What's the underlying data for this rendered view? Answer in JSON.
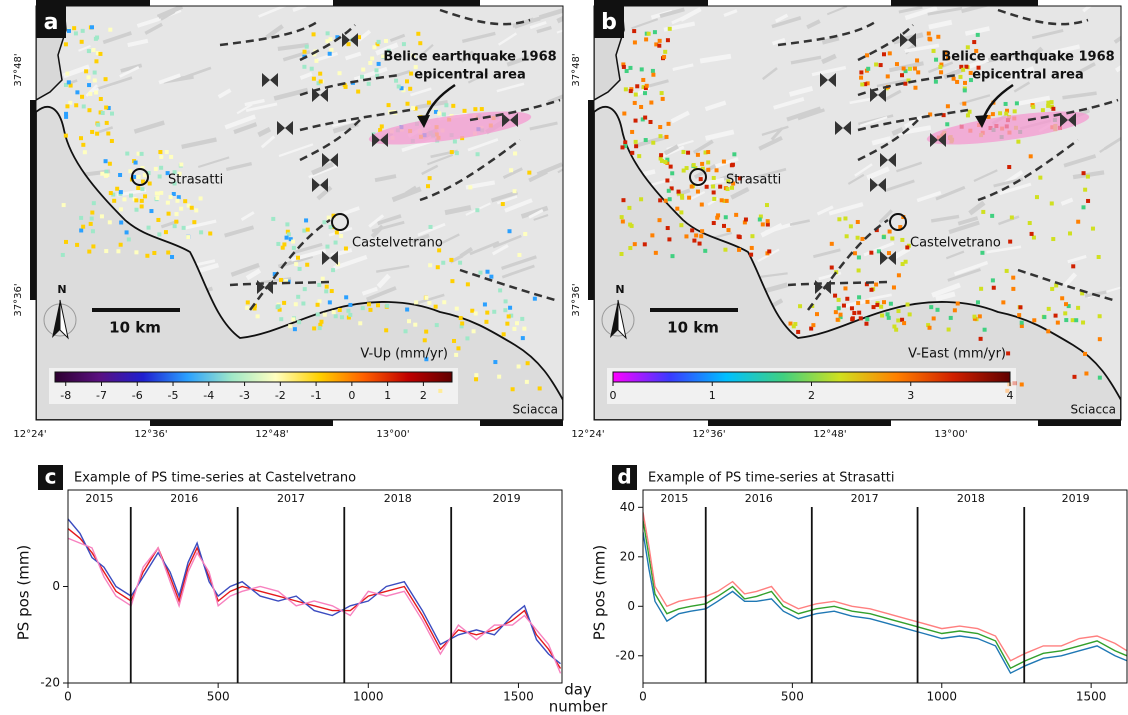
{
  "maps": [
    {
      "label": "a",
      "annotation": [
        "Belice earthquake 1968",
        "epicentral area"
      ],
      "towns": [
        "Strasatti",
        "Castelvetrano"
      ],
      "scale_bar": "10 km",
      "north": "N",
      "place": "Sciacca",
      "lat_labels": [
        "37°48'",
        "37°36'"
      ],
      "lon_labels": [
        "12°24'",
        "12°36'",
        "12°48'",
        "13°00'"
      ],
      "colorbar": {
        "label": "V-Up (mm/yr)",
        "lim": [
          -8.3,
          2.8
        ],
        "ticks": [
          -8,
          -7,
          -6,
          -5,
          -4,
          -3,
          -2,
          -1,
          0,
          1,
          2
        ],
        "colors": [
          "#2d0030",
          "#5a1080",
          "#1f1fd0",
          "#2aa0ff",
          "#9fe8c8",
          "#ffffc0",
          "#ffd000",
          "#ff6000",
          "#c00000",
          "#600000"
        ]
      }
    },
    {
      "label": "b",
      "annotation": [
        "Belice earthquake 1968",
        "epicentral area"
      ],
      "towns": [
        "Strasatti",
        "Castelvetrano"
      ],
      "scale_bar": "10 km",
      "north": "N",
      "place": "Sciacca",
      "lat_labels": [
        "37°48'",
        "37°36'"
      ],
      "lon_labels": [
        "12°24'",
        "12°36'",
        "12°48'",
        "13°00'"
      ],
      "colorbar": {
        "label": "V-East (mm/yr)",
        "lim": [
          0,
          4
        ],
        "ticks": [
          0,
          1,
          2,
          3,
          4
        ],
        "colors": [
          "#ff00ff",
          "#3a3aff",
          "#00c0ff",
          "#40d080",
          "#d0e020",
          "#ff8000",
          "#d02000",
          "#600000"
        ]
      }
    }
  ],
  "chart_data": [
    {
      "type": "line",
      "panel_label": "c",
      "title": "Example of PS time-series at Castelvetrano",
      "y_label": "PS pos (mm)",
      "x_label": [
        "day",
        "number"
      ],
      "x": [
        0,
        40,
        80,
        120,
        160,
        210,
        250,
        300,
        340,
        370,
        400,
        430,
        470,
        500,
        540,
        580,
        640,
        700,
        760,
        820,
        880,
        940,
        1000,
        1060,
        1120,
        1180,
        1240,
        1300,
        1360,
        1420,
        1480,
        1520,
        1560,
        1600,
        1640
      ],
      "series": [
        {
          "color": "#e41a1c",
          "values": [
            12,
            10,
            7,
            3,
            -1,
            -3,
            3,
            8,
            2,
            -3,
            4,
            8,
            2,
            -3,
            -1,
            0,
            -1,
            -2,
            -3,
            -4,
            -5,
            -5,
            -2,
            -1,
            0,
            -6,
            -13,
            -9,
            -10,
            -9,
            -7,
            -5,
            -10,
            -13,
            -17
          ]
        },
        {
          "color": "#3b4cc0",
          "values": [
            14,
            11,
            6,
            4,
            0,
            -2,
            2,
            7,
            3,
            -2,
            5,
            9,
            1,
            -2,
            0,
            1,
            -2,
            -3,
            -2,
            -5,
            -6,
            -4,
            -3,
            0,
            1,
            -5,
            -12,
            -10,
            -9,
            -10,
            -6,
            -4,
            -11,
            -14,
            -16
          ]
        },
        {
          "color": "#f781bf",
          "values": [
            10,
            9,
            8,
            2,
            -2,
            -4,
            4,
            8,
            1,
            -4,
            3,
            7,
            3,
            -4,
            -2,
            -1,
            0,
            -1,
            -4,
            -3,
            -4,
            -6,
            -1,
            -2,
            -1,
            -7,
            -14,
            -8,
            -11,
            -8,
            -8,
            -6,
            -9,
            -12,
            -18
          ]
        }
      ],
      "xlim": [
        0,
        1645
      ],
      "ylim": [
        -20,
        20
      ],
      "xticks": [
        0,
        500,
        1000,
        1500
      ],
      "yticks": [
        -20,
        0
      ],
      "years": [
        "2015",
        "2016",
        "2017",
        "2018",
        "2019"
      ],
      "year_boundaries": [
        209,
        565,
        920,
        1276
      ]
    },
    {
      "type": "line",
      "panel_label": "d",
      "title": "Example of PS time-series at Strasatti",
      "y_label": "PS pos (mm)",
      "x": [
        0,
        20,
        40,
        80,
        120,
        160,
        210,
        250,
        300,
        340,
        380,
        430,
        470,
        520,
        580,
        640,
        700,
        760,
        820,
        880,
        940,
        1000,
        1060,
        1120,
        1180,
        1230,
        1280,
        1340,
        1400,
        1460,
        1520,
        1580,
        1620
      ],
      "series": [
        {
          "color": "#33a02c",
          "values": [
            35,
            20,
            5,
            -3,
            -1,
            0,
            1,
            4,
            8,
            3,
            4,
            6,
            0,
            -3,
            -1,
            0,
            -2,
            -3,
            -5,
            -7,
            -9,
            -11,
            -10,
            -11,
            -14,
            -25,
            -22,
            -19,
            -18,
            -16,
            -14,
            -18,
            -20
          ]
        },
        {
          "color": "#1f78b4",
          "values": [
            30,
            15,
            2,
            -6,
            -3,
            -2,
            -1,
            2,
            6,
            2,
            2,
            3,
            -2,
            -5,
            -3,
            -2,
            -4,
            -5,
            -7,
            -9,
            -11,
            -13,
            -12,
            -13,
            -16,
            -27,
            -24,
            -21,
            -20,
            -18,
            -16,
            -20,
            -22
          ]
        },
        {
          "color": "#ff7f7f",
          "values": [
            38,
            24,
            8,
            0,
            2,
            3,
            4,
            6,
            10,
            5,
            6,
            8,
            2,
            -1,
            1,
            2,
            0,
            -1,
            -3,
            -5,
            -7,
            -9,
            -8,
            -9,
            -12,
            -22,
            -19,
            -16,
            -16,
            -13,
            -12,
            -15,
            -18
          ]
        }
      ],
      "xlim": [
        0,
        1620
      ],
      "ylim": [
        -31,
        47
      ],
      "xticks": [
        0,
        500,
        1000,
        1500
      ],
      "yticks": [
        -20,
        0,
        20,
        40
      ],
      "years": [
        "2015",
        "2016",
        "2017",
        "2018",
        "2019"
      ],
      "year_boundaries": [
        210,
        565,
        919,
        1276
      ]
    }
  ]
}
